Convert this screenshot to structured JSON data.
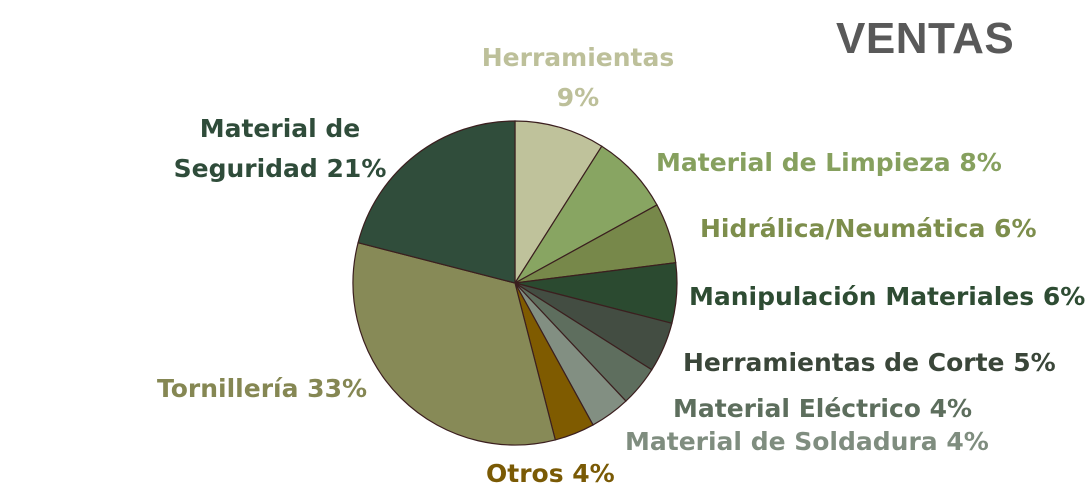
{
  "chart_data": {
    "type": "pie",
    "title": "VENTAS",
    "slices": [
      {
        "name": "Herramientas",
        "value": 9,
        "label": "9%",
        "color": "#bfc29b"
      },
      {
        "name": "Material de Limpieza",
        "value": 8,
        "label": "Material de Limpieza 8%",
        "color": "#88a562"
      },
      {
        "name": "Hidrálica/Neumática",
        "value": 6,
        "label": "Hidrálica/Neumática 6%",
        "color": "#77884a"
      },
      {
        "name": "Manipulación Materiales",
        "value": 6,
        "label": "Manipulación Materiales 6%",
        "color": "#2b4a30"
      },
      {
        "name": "Herramientas de Corte",
        "value": 5,
        "label": "Herramientas de Corte 5%",
        "color": "#434d42"
      },
      {
        "name": "Material Eléctrico",
        "value": 4,
        "label": "Material Eléctrico 4%",
        "color": "#5e6e5e"
      },
      {
        "name": "Material de Soldadura",
        "value": 4,
        "label": "Material de Soldadura 4%",
        "color": "#828f82"
      },
      {
        "name": "Otros",
        "value": 4,
        "label": "Otros 4%",
        "color": "#7f5b00"
      },
      {
        "name": "Tornillería",
        "value": 33,
        "label": "Tornillería 33%",
        "color": "#878a57"
      },
      {
        "name": "Material de Seguridad",
        "value": 21,
        "label": "Material de Seguridad 21%",
        "color": "#304d3b"
      }
    ],
    "label_lines": {
      "herramientas": [
        "Herramientas",
        "9%"
      ],
      "seguridad": [
        "Material de",
        "Seguridad 21%"
      ]
    },
    "label_colors": {
      "Herramientas": "#bdc09a",
      "Material de Limpieza": "#86a05e",
      "Hidrálica/Neumática": "#7d8e4c",
      "Manipulación Materiales": "#2e4c33",
      "Herramientas de Corte": "#3a4639",
      "Material Eléctrico": "#5d6e5d",
      "Material de Soldadura": "#7f8d7f",
      "Otros": "#7a5a05",
      "Tornillería": "#858753",
      "Material de Seguridad": "#2f4c3a"
    },
    "slice_border_color": "#3b1f1f",
    "legend": "none"
  }
}
